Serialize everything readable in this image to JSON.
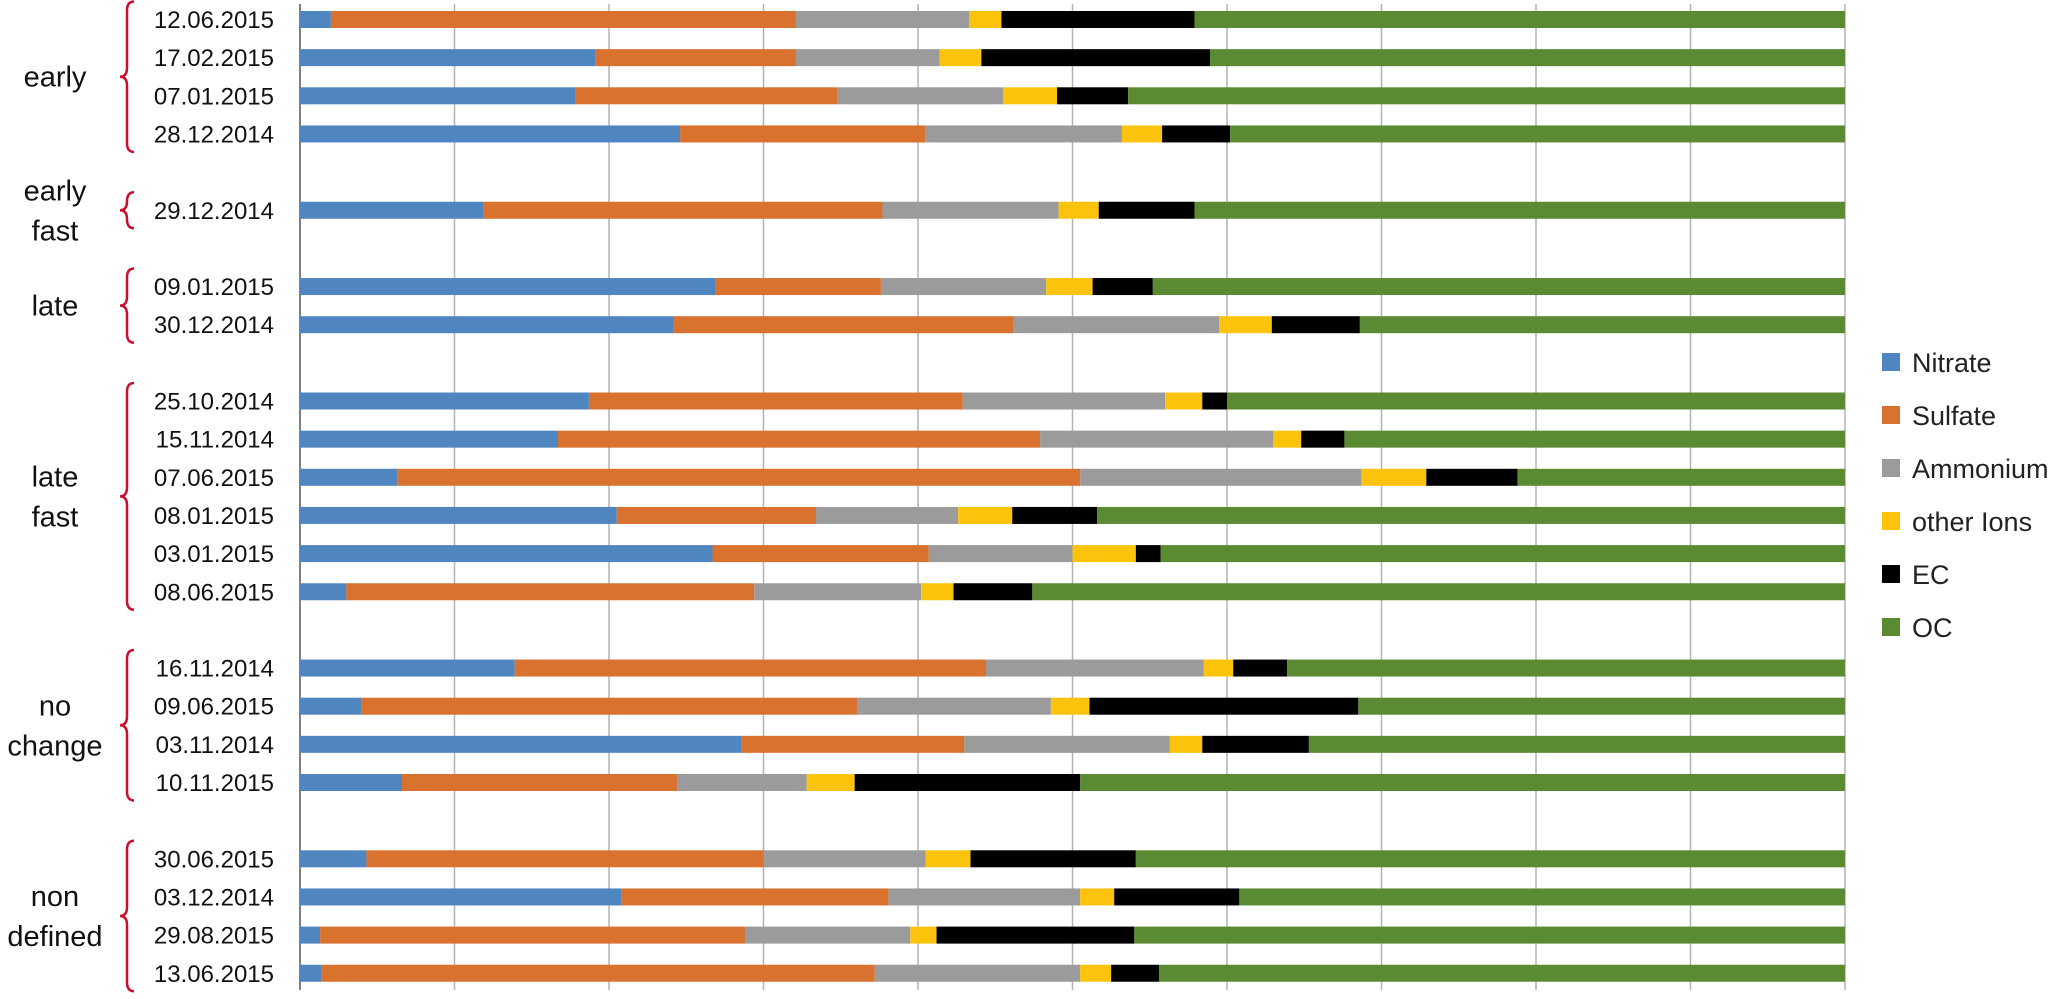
{
  "chart_data": {
    "type": "bar",
    "stacked": true,
    "normalized": true,
    "orientation": "horizontal",
    "title": "",
    "xlabel": "",
    "ylabel": "",
    "grid": true,
    "legend_position": "right",
    "series": [
      {
        "name": "Nitrate",
        "color": "#4f86c0"
      },
      {
        "name": "Sulfate",
        "color": "#d8722e"
      },
      {
        "name": "Ammonium",
        "color": "#9b9b9b"
      },
      {
        "name": "other Ions",
        "color": "#fcc30d"
      },
      {
        "name": "EC",
        "color": "#000000"
      },
      {
        "name": "OC",
        "color": "#5a8a32"
      }
    ],
    "groups": [
      {
        "label_lines": [
          "early"
        ],
        "rows": [
          {
            "date": "12.06.2015",
            "values": [
              0.02,
              0.301,
              0.112,
              0.021,
              0.125,
              0.421
            ]
          },
          {
            "date": "17.02.2015",
            "values": [
              0.191,
              0.13,
              0.093,
              0.027,
              0.148,
              0.411
            ]
          },
          {
            "date": "07.01.2015",
            "values": [
              0.178,
              0.17,
              0.107,
              0.035,
              0.046,
              0.464
            ]
          },
          {
            "date": "28.12.2014",
            "values": [
              0.246,
              0.159,
              0.127,
              0.026,
              0.044,
              0.398
            ]
          }
        ]
      },
      {
        "label_lines": [
          "early",
          "fast"
        ],
        "rows": [
          {
            "date": "29.12.2014",
            "values": [
              0.119,
              0.258,
              0.114,
              0.026,
              0.062,
              0.421
            ]
          }
        ]
      },
      {
        "label_lines": [
          "late"
        ],
        "rows": [
          {
            "date": "09.01.2015",
            "values": [
              0.269,
              0.107,
              0.107,
              0.03,
              0.039,
              0.448
            ]
          },
          {
            "date": "30.12.2014",
            "values": [
              0.242,
              0.22,
              0.133,
              0.034,
              0.057,
              0.314
            ]
          }
        ]
      },
      {
        "label_lines": [
          "late",
          "fast"
        ],
        "rows": [
          {
            "date": "25.10.2014",
            "values": [
              0.187,
              0.242,
              0.131,
              0.024,
              0.016,
              0.4
            ]
          },
          {
            "date": "15.11.2014",
            "values": [
              0.167,
              0.312,
              0.151,
              0.018,
              0.028,
              0.324
            ]
          },
          {
            "date": "07.06.2015",
            "values": [
              0.063,
              0.442,
              0.182,
              0.042,
              0.059,
              0.212
            ]
          },
          {
            "date": "08.01.2015",
            "values": [
              0.205,
              0.129,
              0.092,
              0.035,
              0.055,
              0.484
            ]
          },
          {
            "date": "03.01.2015",
            "values": [
              0.267,
              0.14,
              0.093,
              0.041,
              0.016,
              0.443
            ]
          },
          {
            "date": "08.06.2015",
            "values": [
              0.03,
              0.264,
              0.108,
              0.021,
              0.051,
              0.526
            ]
          }
        ]
      },
      {
        "label_lines": [
          "no",
          "change"
        ],
        "rows": [
          {
            "date": "16.11.2014",
            "values": [
              0.139,
              0.305,
              0.141,
              0.019,
              0.035,
              0.361
            ]
          },
          {
            "date": "09.06.2015",
            "values": [
              0.04,
              0.321,
              0.125,
              0.025,
              0.174,
              0.315
            ]
          },
          {
            "date": "03.11.2014",
            "values": [
              0.286,
              0.144,
              0.133,
              0.021,
              0.069,
              0.347
            ]
          },
          {
            "date": "10.11.2015",
            "values": [
              0.066,
              0.178,
              0.084,
              0.031,
              0.146,
              0.495
            ]
          }
        ]
      },
      {
        "label_lines": [
          "non",
          "defined"
        ],
        "rows": [
          {
            "date": "30.06.2015",
            "values": [
              0.043,
              0.257,
              0.105,
              0.029,
              0.107,
              0.459
            ]
          },
          {
            "date": "03.12.2014",
            "values": [
              0.208,
              0.173,
              0.124,
              0.022,
              0.081,
              0.392
            ]
          },
          {
            "date": "29.08.2015",
            "values": [
              0.013,
              0.275,
              0.107,
              0.017,
              0.128,
              0.46
            ]
          },
          {
            "date": "13.06.2015",
            "values": [
              0.014,
              0.358,
              0.133,
              0.02,
              0.031,
              0.444
            ]
          }
        ]
      }
    ]
  }
}
